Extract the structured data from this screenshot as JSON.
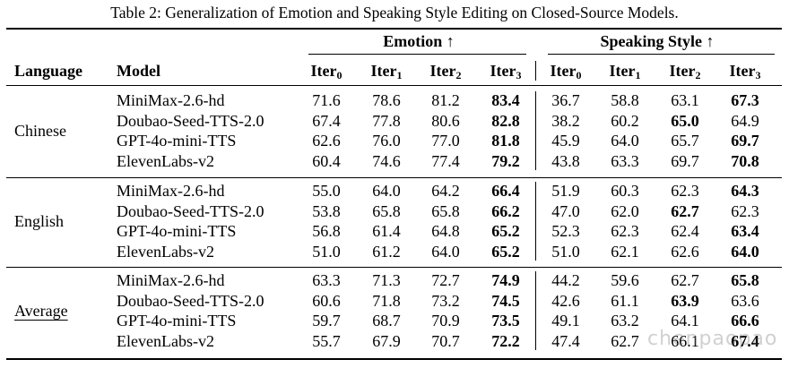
{
  "caption": "Table 2: Generalization of Emotion and Speaking Style Editing on Closed-Source Models.",
  "header": {
    "language": "Language",
    "model": "Model",
    "emotion": "Emotion ↑",
    "speaking_style": "Speaking Style ↑",
    "iter_base": "Iter",
    "iter_subs": [
      "0",
      "1",
      "2",
      "3"
    ]
  },
  "groups": [
    {
      "language": "Chinese",
      "rows": [
        {
          "model": "MiniMax-2.6-hd",
          "emotion": [
            "71.6",
            "78.6",
            "81.2",
            "83.4"
          ],
          "style": [
            "36.7",
            "58.8",
            "63.1",
            "67.3"
          ],
          "emotion_bold": 3,
          "style_bold": 3
        },
        {
          "model": "Doubao-Seed-TTS-2.0",
          "emotion": [
            "67.4",
            "77.8",
            "80.6",
            "82.8"
          ],
          "style": [
            "38.2",
            "60.2",
            "65.0",
            "64.9"
          ],
          "emotion_bold": 3,
          "style_bold": 2
        },
        {
          "model": "GPT-4o-mini-TTS",
          "emotion": [
            "62.6",
            "76.0",
            "77.0",
            "81.8"
          ],
          "style": [
            "45.9",
            "64.0",
            "65.7",
            "69.7"
          ],
          "emotion_bold": 3,
          "style_bold": 3
        },
        {
          "model": "ElevenLabs-v2",
          "emotion": [
            "60.4",
            "74.6",
            "77.4",
            "79.2"
          ],
          "style": [
            "43.8",
            "63.3",
            "69.7",
            "70.8"
          ],
          "emotion_bold": 3,
          "style_bold": 3
        }
      ]
    },
    {
      "language": "English",
      "rows": [
        {
          "model": "MiniMax-2.6-hd",
          "emotion": [
            "55.0",
            "64.0",
            "64.2",
            "66.4"
          ],
          "style": [
            "51.9",
            "60.3",
            "62.3",
            "64.3"
          ],
          "emotion_bold": 3,
          "style_bold": 3
        },
        {
          "model": "Doubao-Seed-TTS-2.0",
          "emotion": [
            "53.8",
            "65.8",
            "65.8",
            "66.2"
          ],
          "style": [
            "47.0",
            "62.0",
            "62.7",
            "62.3"
          ],
          "emotion_bold": 3,
          "style_bold": 2
        },
        {
          "model": "GPT-4o-mini-TTS",
          "emotion": [
            "56.8",
            "61.4",
            "64.8",
            "65.2"
          ],
          "style": [
            "52.3",
            "62.3",
            "62.4",
            "63.4"
          ],
          "emotion_bold": 3,
          "style_bold": 3
        },
        {
          "model": "ElevenLabs-v2",
          "emotion": [
            "51.0",
            "61.2",
            "64.0",
            "65.2"
          ],
          "style": [
            "51.0",
            "62.1",
            "62.6",
            "64.0"
          ],
          "emotion_bold": 3,
          "style_bold": 3
        }
      ]
    },
    {
      "language": "Average",
      "underline": true,
      "rows": [
        {
          "model": "MiniMax-2.6-hd",
          "emotion": [
            "63.3",
            "71.3",
            "72.7",
            "74.9"
          ],
          "style": [
            "44.2",
            "59.6",
            "62.7",
            "65.8"
          ],
          "emotion_bold": 3,
          "style_bold": 3
        },
        {
          "model": "Doubao-Seed-TTS-2.0",
          "emotion": [
            "60.6",
            "71.8",
            "73.2",
            "74.5"
          ],
          "style": [
            "42.6",
            "61.1",
            "63.9",
            "63.6"
          ],
          "emotion_bold": 3,
          "style_bold": 2
        },
        {
          "model": "GPT-4o-mini-TTS",
          "emotion": [
            "59.7",
            "68.7",
            "70.9",
            "73.5"
          ],
          "style": [
            "49.1",
            "63.2",
            "64.1",
            "66.6"
          ],
          "emotion_bold": 3,
          "style_bold": 3
        },
        {
          "model": "ElevenLabs-v2",
          "emotion": [
            "55.7",
            "67.9",
            "70.7",
            "72.2"
          ],
          "style": [
            "47.4",
            "62.7",
            "66.1",
            "67.4"
          ],
          "emotion_bold": 3,
          "style_bold": 3
        }
      ]
    }
  ],
  "watermark": "chenpaopao"
}
